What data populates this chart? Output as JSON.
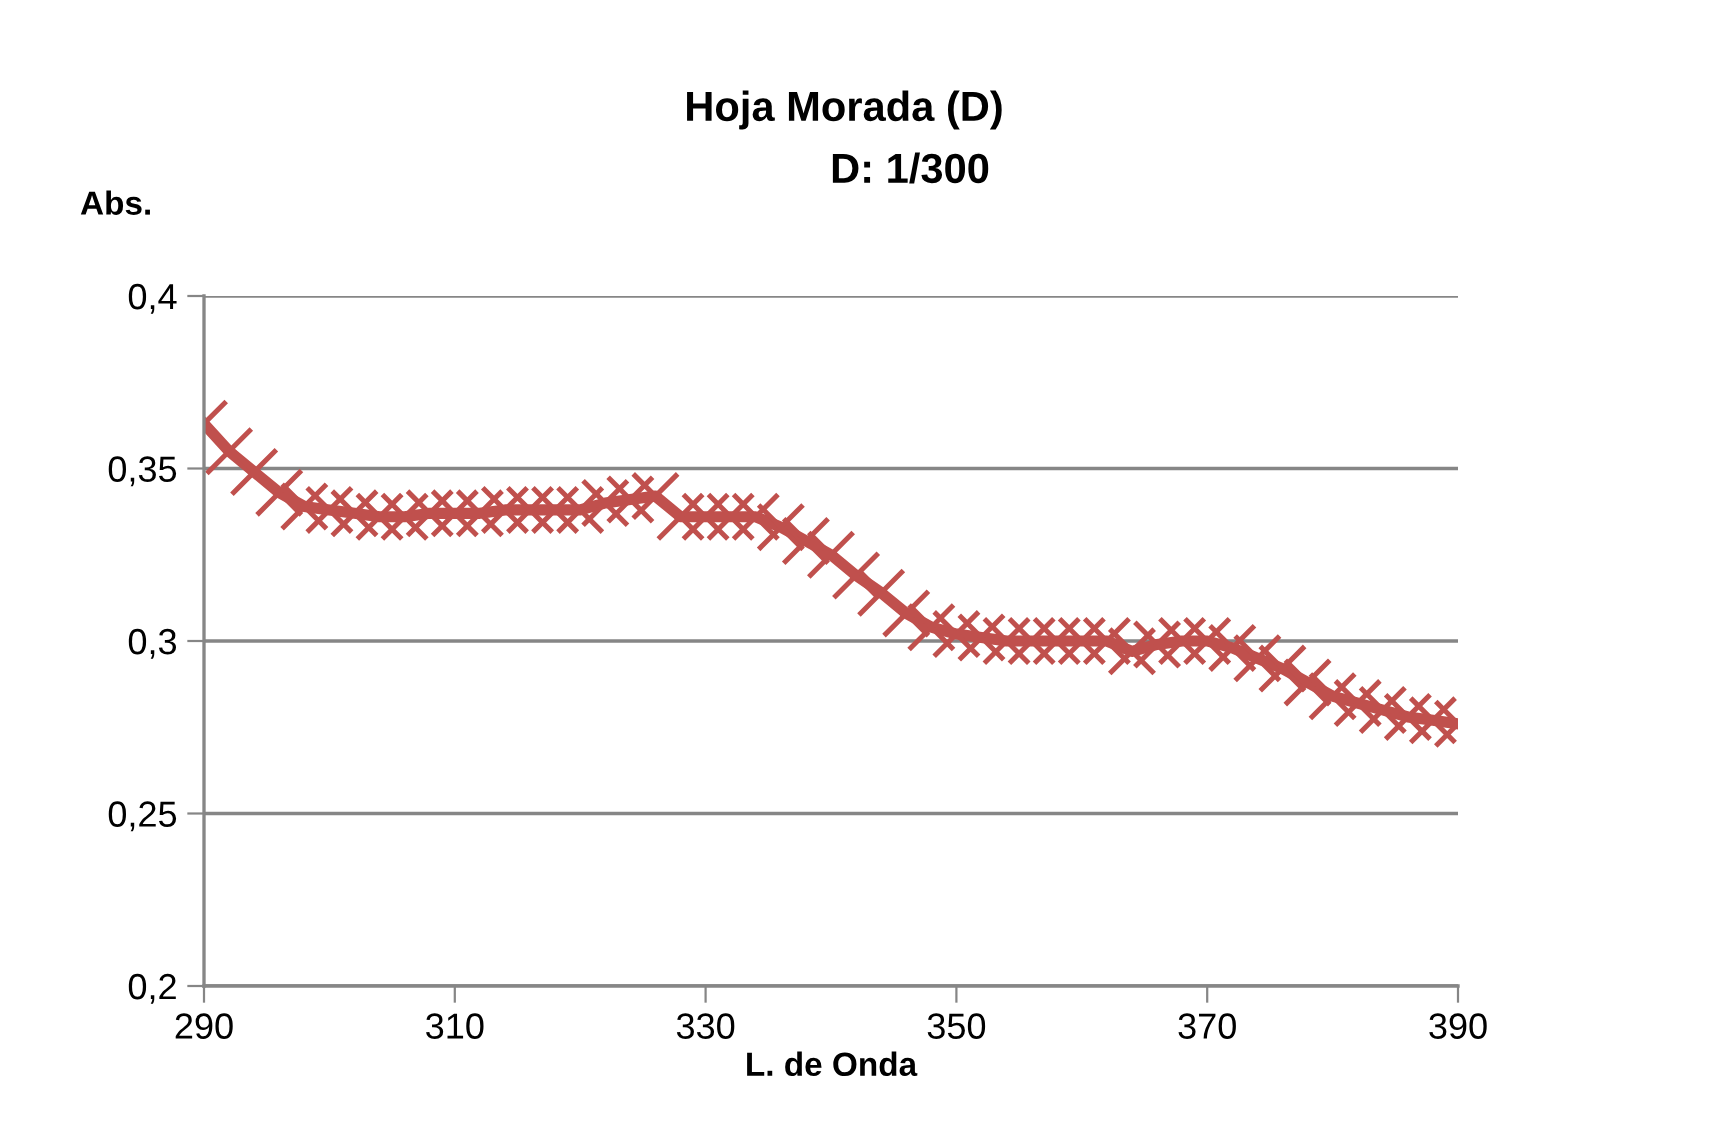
{
  "chart_data": {
    "type": "line",
    "title": "Hoja Morada (D)",
    "subtitle": "D: 1/300",
    "xlabel": "L. de Onda",
    "ylabel": "Abs.",
    "x": [
      290,
      292,
      294,
      296,
      298,
      300,
      302,
      304,
      306,
      308,
      310,
      312,
      314,
      316,
      318,
      320,
      322,
      324,
      326,
      328,
      330,
      332,
      334,
      336,
      338,
      340,
      342,
      344,
      346,
      348,
      350,
      352,
      354,
      356,
      358,
      360,
      362,
      364,
      366,
      368,
      370,
      372,
      374,
      376,
      378,
      380,
      382,
      384,
      386,
      388,
      390
    ],
    "series": [
      {
        "color": "#c0504d",
        "values": [
          0.363,
          0.355,
          0.349,
          0.343,
          0.339,
          0.338,
          0.337,
          0.336,
          0.336,
          0.337,
          0.337,
          0.337,
          0.338,
          0.338,
          0.338,
          0.338,
          0.34,
          0.341,
          0.342,
          0.336,
          0.336,
          0.336,
          0.336,
          0.333,
          0.329,
          0.325,
          0.319,
          0.314,
          0.308,
          0.304,
          0.302,
          0.301,
          0.3,
          0.3,
          0.3,
          0.3,
          0.3,
          0.297,
          0.299,
          0.3,
          0.3,
          0.298,
          0.295,
          0.292,
          0.288,
          0.284,
          0.282,
          0.28,
          0.278,
          0.277,
          0.276
        ]
      }
    ],
    "xlim": [
      290,
      390
    ],
    "xticks": [
      290,
      310,
      330,
      350,
      370,
      390
    ],
    "ylim": [
      0.2,
      0.4
    ],
    "yticks": [
      {
        "value": 0.2,
        "label": "0,2"
      },
      {
        "value": 0.25,
        "label": "0,25"
      },
      {
        "value": 0.3,
        "label": "0,3"
      },
      {
        "value": 0.35,
        "label": "0,35"
      },
      {
        "value": 0.4,
        "label": "0,4"
      }
    ],
    "grid": "y",
    "legend": false,
    "marker": "cross",
    "line_style": "solid"
  }
}
